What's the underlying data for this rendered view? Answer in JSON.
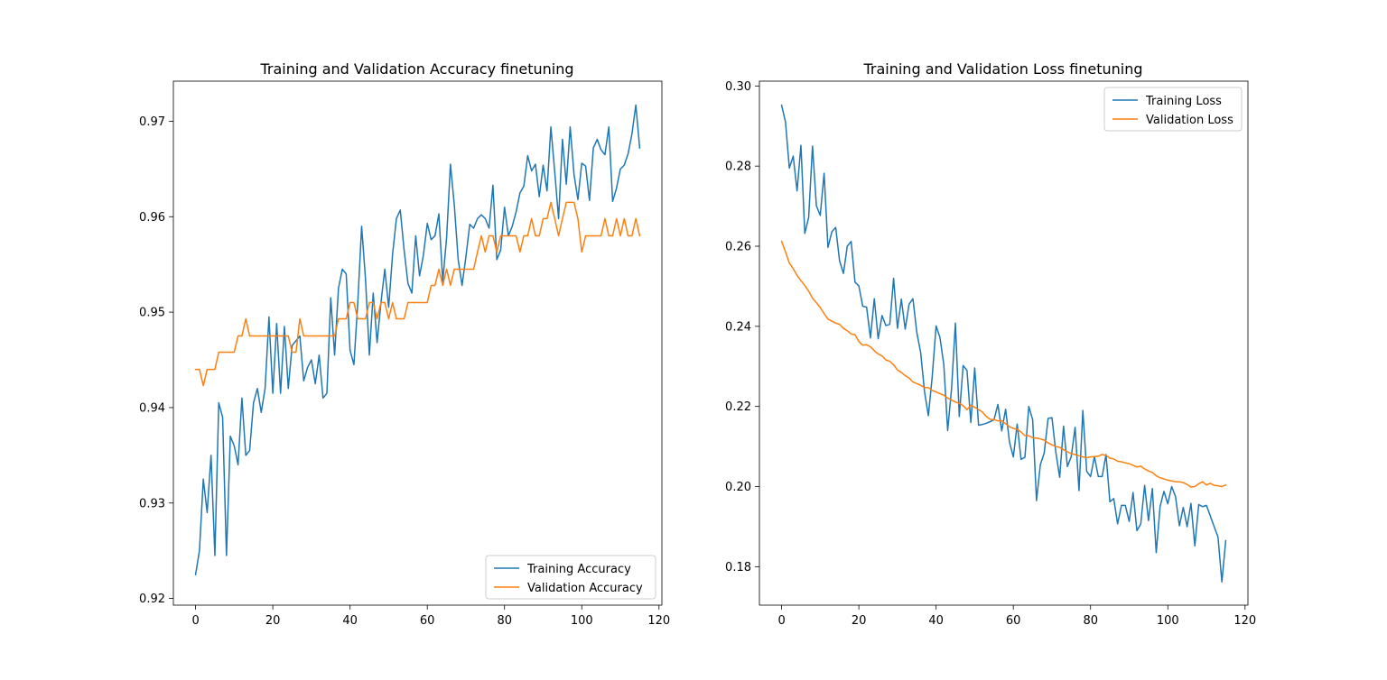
{
  "chart_data": [
    {
      "type": "line",
      "title": "Training and Validation Accuracy finetuning",
      "xlabel": "",
      "ylabel": "",
      "xlim": [
        -5.75,
        120.75
      ],
      "ylim": [
        0.9193,
        0.9742
      ],
      "xticks": [
        0,
        20,
        40,
        60,
        80,
        100,
        120
      ],
      "xtick_labels": [
        "0",
        "20",
        "40",
        "60",
        "80",
        "100",
        "120"
      ],
      "yticks": [
        0.92,
        0.93,
        0.94,
        0.95,
        0.96,
        0.97
      ],
      "ytick_labels": [
        "0.92",
        "0.93",
        "0.94",
        "0.95",
        "0.96",
        "0.97"
      ],
      "grid": false,
      "legend_position": "lower-right",
      "series": [
        {
          "name": "Training Accuracy",
          "color": "#1f77b4",
          "values": [
            0.9225,
            0.925,
            0.9325,
            0.929,
            0.935,
            0.9245,
            0.9405,
            0.939,
            0.9245,
            0.937,
            0.936,
            0.934,
            0.941,
            0.935,
            0.9355,
            0.9405,
            0.942,
            0.9395,
            0.942,
            0.9495,
            0.9415,
            0.9488,
            0.9415,
            0.9485,
            0.942,
            0.9465,
            0.947,
            0.9475,
            0.9428,
            0.9442,
            0.945,
            0.9425,
            0.9455,
            0.941,
            0.9415,
            0.9515,
            0.9455,
            0.9525,
            0.9545,
            0.954,
            0.946,
            0.9445,
            0.951,
            0.959,
            0.9535,
            0.9455,
            0.952,
            0.9468,
            0.951,
            0.9545,
            0.9505,
            0.956,
            0.9598,
            0.9607,
            0.9565,
            0.953,
            0.952,
            0.958,
            0.9538,
            0.956,
            0.9593,
            0.9576,
            0.958,
            0.9603,
            0.9532,
            0.9578,
            0.9655,
            0.9612,
            0.9555,
            0.9528,
            0.9558,
            0.9592,
            0.9588,
            0.9598,
            0.9602,
            0.9598,
            0.9588,
            0.9633,
            0.9555,
            0.9565,
            0.961,
            0.958,
            0.959,
            0.9605,
            0.9625,
            0.9632,
            0.9664,
            0.9648,
            0.9655,
            0.9621,
            0.9654,
            0.9627,
            0.9694,
            0.9647,
            0.9598,
            0.9681,
            0.9634,
            0.9694,
            0.9644,
            0.9618,
            0.9656,
            0.9653,
            0.9617,
            0.9672,
            0.9681,
            0.967,
            0.9665,
            0.9694,
            0.9616,
            0.963,
            0.965,
            0.9654,
            0.9666,
            0.9687,
            0.9717,
            0.9672
          ]
        },
        {
          "name": "Validation Accuracy",
          "color": "#ff7f0e",
          "values": [
            0.944,
            0.944,
            0.9423,
            0.944,
            0.944,
            0.944,
            0.9458,
            0.9458,
            0.9458,
            0.9458,
            0.9458,
            0.9475,
            0.9475,
            0.9493,
            0.9475,
            0.9475,
            0.9475,
            0.9475,
            0.9475,
            0.9475,
            0.9475,
            0.9475,
            0.9475,
            0.9475,
            0.9475,
            0.9458,
            0.9458,
            0.9493,
            0.9475,
            0.9475,
            0.9475,
            0.9475,
            0.9475,
            0.9475,
            0.9475,
            0.9475,
            0.9475,
            0.9493,
            0.9493,
            0.9493,
            0.951,
            0.951,
            0.9493,
            0.9493,
            0.9493,
            0.951,
            0.951,
            0.9493,
            0.951,
            0.951,
            0.9493,
            0.951,
            0.9493,
            0.9493,
            0.9493,
            0.951,
            0.951,
            0.951,
            0.951,
            0.951,
            0.951,
            0.9528,
            0.9528,
            0.9545,
            0.9528,
            0.9545,
            0.9528,
            0.9545,
            0.9545,
            0.9545,
            0.9545,
            0.9545,
            0.9545,
            0.9563,
            0.958,
            0.9563,
            0.958,
            0.958,
            0.9563,
            0.958,
            0.958,
            0.958,
            0.958,
            0.958,
            0.9563,
            0.958,
            0.958,
            0.9598,
            0.958,
            0.958,
            0.9598,
            0.9598,
            0.9615,
            0.9598,
            0.958,
            0.9598,
            0.9615,
            0.9615,
            0.9615,
            0.9598,
            0.9563,
            0.958,
            0.958,
            0.958,
            0.958,
            0.958,
            0.9598,
            0.958,
            0.958,
            0.9598,
            0.958,
            0.9598,
            0.958,
            0.958,
            0.9598,
            0.958
          ]
        }
      ]
    },
    {
      "type": "line",
      "title": "Training and Validation Loss finetuning",
      "xlabel": "",
      "ylabel": "",
      "xlim": [
        -5.75,
        120.75
      ],
      "ylim": [
        0.1704,
        0.3012
      ],
      "xticks": [
        0,
        20,
        40,
        60,
        80,
        100,
        120
      ],
      "xtick_labels": [
        "0",
        "20",
        "40",
        "60",
        "80",
        "100",
        "120"
      ],
      "yticks": [
        0.18,
        0.2,
        0.22,
        0.24,
        0.26,
        0.28,
        0.3
      ],
      "ytick_labels": [
        "0.18",
        "0.20",
        "0.22",
        "0.24",
        "0.26",
        "0.28",
        "0.30"
      ],
      "grid": false,
      "legend_position": "upper-right",
      "series": [
        {
          "name": "Training Loss",
          "color": "#1f77b4",
          "values": [
            0.2952,
            0.291,
            0.2795,
            0.2825,
            0.2738,
            0.2852,
            0.2632,
            0.2672,
            0.285,
            0.2701,
            0.2677,
            0.2782,
            0.2597,
            0.2636,
            0.2647,
            0.2564,
            0.2532,
            0.26,
            0.2612,
            0.251,
            0.2501,
            0.245,
            0.2448,
            0.2371,
            0.2469,
            0.2369,
            0.2427,
            0.2402,
            0.2405,
            0.252,
            0.2395,
            0.2468,
            0.2393,
            0.2455,
            0.2469,
            0.2385,
            0.2335,
            0.2237,
            0.2177,
            0.2275,
            0.2401,
            0.2372,
            0.2304,
            0.214,
            0.2244,
            0.2408,
            0.2175,
            0.2302,
            0.229,
            0.216,
            0.2296,
            0.2153,
            0.2155,
            0.2158,
            0.2162,
            0.2167,
            0.2205,
            0.2139,
            0.2193,
            0.2111,
            0.2074,
            0.2156,
            0.2068,
            0.2073,
            0.22,
            0.2167,
            0.1965,
            0.2055,
            0.2084,
            0.217,
            0.2172,
            0.2086,
            0.2023,
            0.2151,
            0.205,
            0.2075,
            0.2148,
            0.199,
            0.219,
            0.2038,
            0.2025,
            0.2075,
            0.2025,
            0.2025,
            0.208,
            0.1962,
            0.197,
            0.1907,
            0.1953,
            0.1953,
            0.1913,
            0.1985,
            0.189,
            0.1907,
            0.2003,
            0.1915,
            0.1995,
            0.1835,
            0.195,
            0.1988,
            0.1957,
            0.2,
            0.1975,
            0.1902,
            0.1948,
            0.19,
            0.1958,
            0.1852,
            0.1955,
            0.195,
            0.1953,
            0.1927,
            0.19,
            0.1874,
            0.1762,
            0.1865
          ]
        },
        {
          "name": "Validation Loss",
          "color": "#ff7f0e",
          "values": [
            0.2612,
            0.2586,
            0.2558,
            0.2544,
            0.2527,
            0.2514,
            0.2502,
            0.2488,
            0.247,
            0.2459,
            0.2447,
            0.2432,
            0.2418,
            0.2413,
            0.2408,
            0.2405,
            0.2395,
            0.2389,
            0.2381,
            0.2379,
            0.2362,
            0.2353,
            0.2354,
            0.2349,
            0.2339,
            0.2331,
            0.2326,
            0.2316,
            0.2313,
            0.2304,
            0.2291,
            0.2285,
            0.2277,
            0.2271,
            0.2261,
            0.2257,
            0.2253,
            0.2247,
            0.2247,
            0.224,
            0.2236,
            0.2232,
            0.2228,
            0.2221,
            0.2216,
            0.2211,
            0.2208,
            0.2202,
            0.2192,
            0.2203,
            0.2198,
            0.2192,
            0.2186,
            0.2175,
            0.2168,
            0.2167,
            0.2164,
            0.2164,
            0.2157,
            0.2149,
            0.2145,
            0.2143,
            0.2136,
            0.2127,
            0.2127,
            0.2122,
            0.2121,
            0.2119,
            0.2116,
            0.2109,
            0.2104,
            0.21,
            0.2098,
            0.2092,
            0.2087,
            0.2082,
            0.208,
            0.2077,
            0.2074,
            0.2072,
            0.2074,
            0.2075,
            0.2076,
            0.208,
            0.2078,
            0.2071,
            0.2069,
            0.2063,
            0.2062,
            0.2059,
            0.2057,
            0.2053,
            0.2049,
            0.2051,
            0.2044,
            0.2039,
            0.2035,
            0.2027,
            0.2022,
            0.2019,
            0.2016,
            0.2014,
            0.2012,
            0.2012,
            0.201,
            0.2005,
            0.1999,
            0.2,
            0.2007,
            0.2012,
            0.2004,
            0.2008,
            0.2003,
            0.2002,
            0.2,
            0.2004
          ]
        }
      ]
    }
  ]
}
